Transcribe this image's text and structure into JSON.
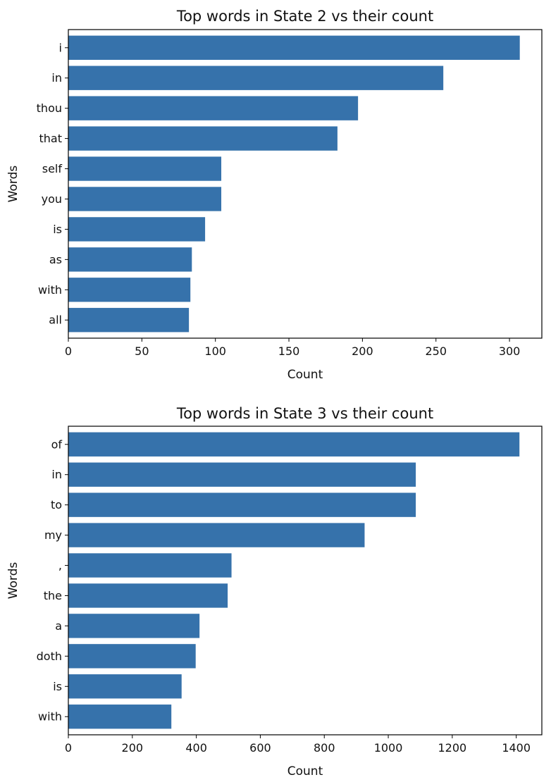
{
  "chart_data": [
    {
      "type": "bar",
      "orientation": "horizontal",
      "title": "Top words in State 2 vs their count",
      "xlabel": "Count",
      "ylabel": "Words",
      "categories": [
        "i",
        "in",
        "thou",
        "that",
        "self",
        "you",
        "is",
        "as",
        "with",
        "all"
      ],
      "values": [
        307,
        255,
        197,
        183,
        104,
        104,
        93,
        84,
        83,
        82
      ],
      "xlim": [
        0,
        322
      ],
      "xticks": [
        0,
        50,
        100,
        150,
        200,
        250,
        300
      ],
      "grid": false,
      "color": "#3672ab"
    },
    {
      "type": "bar",
      "orientation": "horizontal",
      "title": "Top words in State 3 vs their count",
      "xlabel": "Count",
      "ylabel": "Words",
      "categories": [
        "of",
        "in",
        "to",
        "my",
        ",",
        "the",
        "a",
        "doth",
        "is",
        "with"
      ],
      "values": [
        1410,
        1086,
        1086,
        926,
        510,
        498,
        410,
        398,
        354,
        322
      ],
      "xlim": [
        0,
        1480
      ],
      "xticks": [
        0,
        200,
        400,
        600,
        800,
        1000,
        1200,
        1400
      ],
      "grid": false,
      "color": "#3672ab"
    }
  ]
}
